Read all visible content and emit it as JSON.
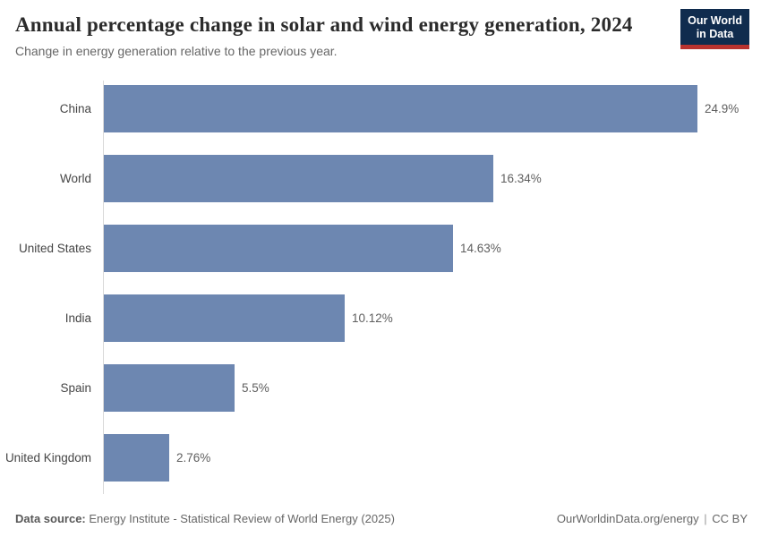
{
  "header": {
    "title": "Annual percentage change in solar and wind energy generation, 2024",
    "subtitle": "Change in energy generation relative to the previous year."
  },
  "logo": {
    "line1": "Our World",
    "line2": "in Data",
    "bg_color": "#102c4e",
    "accent_color": "#b9332f"
  },
  "chart_data": {
    "type": "bar",
    "orientation": "horizontal",
    "title": "Annual percentage change in solar and wind energy generation, 2024",
    "unit": "%",
    "categories": [
      "China",
      "World",
      "United States",
      "India",
      "Spain",
      "United Kingdom"
    ],
    "values": [
      24.9,
      16.34,
      14.63,
      10.12,
      5.5,
      2.76
    ],
    "value_labels": [
      "24.9%",
      "16.34%",
      "14.63%",
      "10.12%",
      "5.5%",
      "2.76%"
    ],
    "bar_color": "#6d87b1",
    "axis_color": "#d9d9d9",
    "xlim": [
      0,
      27
    ],
    "grid": false,
    "legend": false
  },
  "footer": {
    "source_label": "Data source:",
    "source_text": "Energy Institute - Statistical Review of World Energy (2025)",
    "credit_url": "OurWorldinData.org/energy",
    "separator": "|",
    "license": "CC BY"
  }
}
